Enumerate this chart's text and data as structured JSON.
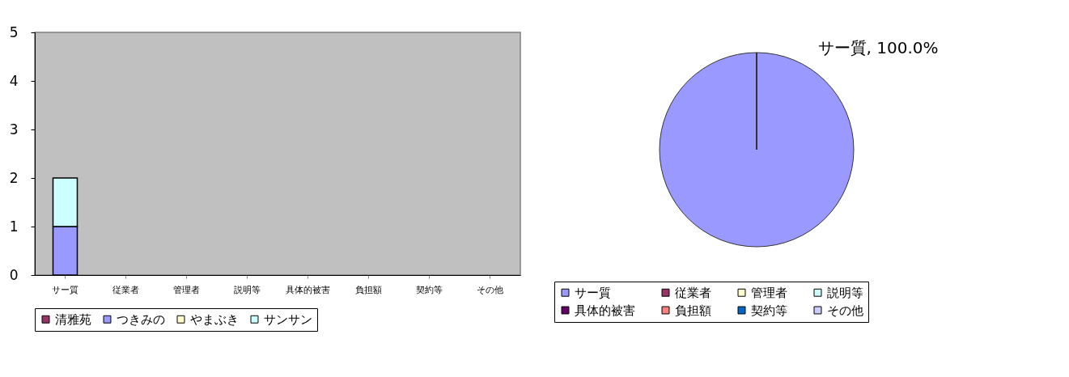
{
  "chart_data": [
    {
      "type": "bar",
      "stacked": true,
      "categories": [
        "サー質",
        "従業者",
        "管理者",
        "説明等",
        "具体的被害",
        "負担額",
        "契約等",
        "その他"
      ],
      "series": [
        {
          "name": "清雅苑",
          "color": "#993366",
          "values": [
            0,
            0,
            0,
            0,
            0,
            0,
            0,
            0
          ]
        },
        {
          "name": "つきみの",
          "color": "#9999ff",
          "values": [
            1,
            0,
            0,
            0,
            0,
            0,
            0,
            0
          ]
        },
        {
          "name": "やまぶき",
          "color": "#ffffcc",
          "values": [
            0,
            0,
            0,
            0,
            0,
            0,
            0,
            0
          ]
        },
        {
          "name": "サンサン",
          "color": "#ccffff",
          "values": [
            1,
            0,
            0,
            0,
            0,
            0,
            0,
            0
          ]
        }
      ],
      "ylim": [
        0,
        5
      ],
      "yticks": [
        0,
        1,
        2,
        3,
        4,
        5
      ],
      "grid": false,
      "legend": "bottom"
    },
    {
      "type": "pie",
      "categories": [
        "サー質",
        "従業者",
        "管理者",
        "説明等",
        "具体的被害",
        "負担額",
        "契約等",
        "その他"
      ],
      "values": [
        100,
        0,
        0,
        0,
        0,
        0,
        0,
        0
      ],
      "colors": [
        "#9999ff",
        "#993366",
        "#ffffcc",
        "#ccffff",
        "#660066",
        "#ff8080",
        "#0066cc",
        "#ccccff"
      ],
      "value_labels": [
        "サー質, 100.0%",
        null,
        null,
        null,
        null,
        null,
        null,
        null
      ],
      "legend": "bottom"
    }
  ]
}
